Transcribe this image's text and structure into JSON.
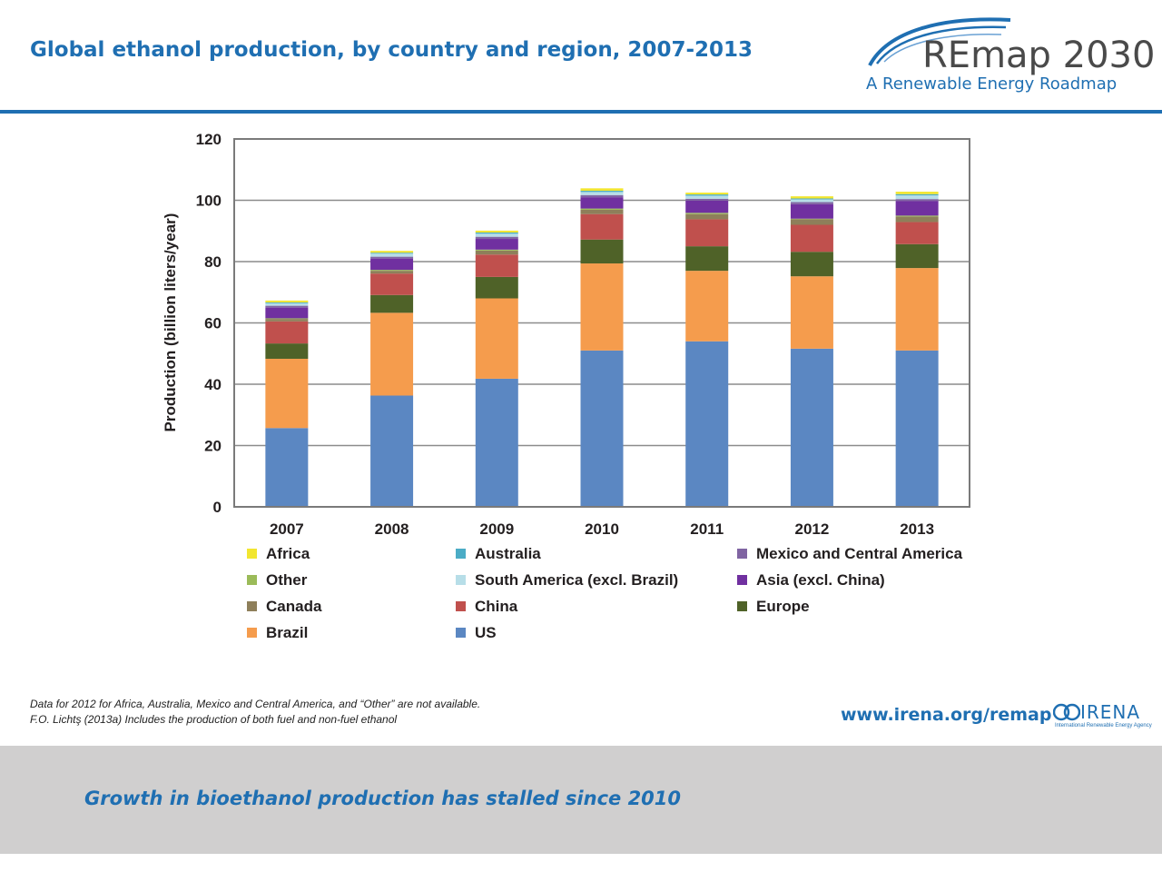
{
  "header": {
    "title": "Global ethanol production, by country and region, 2007-2013",
    "logo_main": "REmap 2030",
    "logo_sub": "A Renewable Energy Roadmap"
  },
  "chart_data": {
    "type": "bar",
    "stacked": true,
    "title": "",
    "xlabel": "",
    "ylabel": "Production (billion liters/year)",
    "ylim": [
      0,
      120
    ],
    "yticks": [
      0,
      20,
      40,
      60,
      80,
      100,
      120
    ],
    "grid": true,
    "legend_position": "bottom",
    "categories": [
      "2007",
      "2008",
      "2009",
      "2010",
      "2011",
      "2012",
      "2013"
    ],
    "series": [
      {
        "name": "US",
        "color": "#5b87c2",
        "values": [
          25.7,
          36.3,
          41.8,
          51.0,
          54.0,
          51.6,
          51.0
        ]
      },
      {
        "name": "Brazil",
        "color": "#f59c4d",
        "values": [
          22.6,
          27.0,
          26.2,
          28.4,
          23.0,
          23.6,
          26.9
        ]
      },
      {
        "name": "Europe",
        "color": "#4f6228",
        "values": [
          5.0,
          5.8,
          7.0,
          7.8,
          8.0,
          8.0,
          7.8
        ]
      },
      {
        "name": "China",
        "color": "#c0504d",
        "values": [
          7.2,
          7.0,
          7.3,
          8.3,
          8.8,
          8.8,
          7.2
        ]
      },
      {
        "name": "Canada",
        "color": "#8e7f5a",
        "values": [
          0.8,
          0.9,
          1.3,
          1.4,
          1.7,
          1.8,
          1.8
        ]
      },
      {
        "name": "Other",
        "color": "#9bbb59",
        "values": [
          0.2,
          0.3,
          0.3,
          0.4,
          0.4,
          0.2,
          0.3
        ]
      },
      {
        "name": "Asia (excl. China)",
        "color": "#7030a0",
        "values": [
          3.5,
          3.7,
          3.5,
          3.7,
          4.0,
          4.7,
          4.8
        ]
      },
      {
        "name": "Mexico and Central America",
        "color": "#8064a2",
        "values": [
          0.6,
          0.6,
          0.7,
          0.7,
          0.6,
          0.7,
          0.6
        ]
      },
      {
        "name": "South America (excl. Brazil)",
        "color": "#b7dee8",
        "values": [
          0.8,
          1.0,
          1.0,
          1.0,
          1.0,
          0.9,
          1.2
        ]
      },
      {
        "name": "Australia",
        "color": "#4bacc6",
        "values": [
          0.3,
          0.3,
          0.4,
          0.4,
          0.4,
          0.3,
          0.4
        ]
      },
      {
        "name": "Africa",
        "color": "#f2e630",
        "values": [
          0.6,
          0.6,
          0.6,
          0.8,
          0.6,
          0.7,
          0.8
        ]
      }
    ],
    "legend_layout": [
      [
        "Africa",
        "Australia",
        "Mexico and Central America"
      ],
      [
        "Other",
        "South America (excl. Brazil)",
        "Asia (excl. China)"
      ],
      [
        "Canada",
        "China",
        "Europe"
      ],
      [
        "Brazil",
        "US"
      ]
    ]
  },
  "footnote": {
    "line1": "Data for 2012 for Africa, Australia, Mexico and Central America, and “Other” are not available.",
    "line2": "F.O. Lichtş (2013a) Includes the production of both fuel and non-fuel ethanol"
  },
  "footer": {
    "url": "www.irena.org/remap",
    "irena_name": "IRENA",
    "irena_sub": "International Renewable Energy Agency",
    "takeaway": "Growth in bioethanol production has stalled since 2010"
  }
}
